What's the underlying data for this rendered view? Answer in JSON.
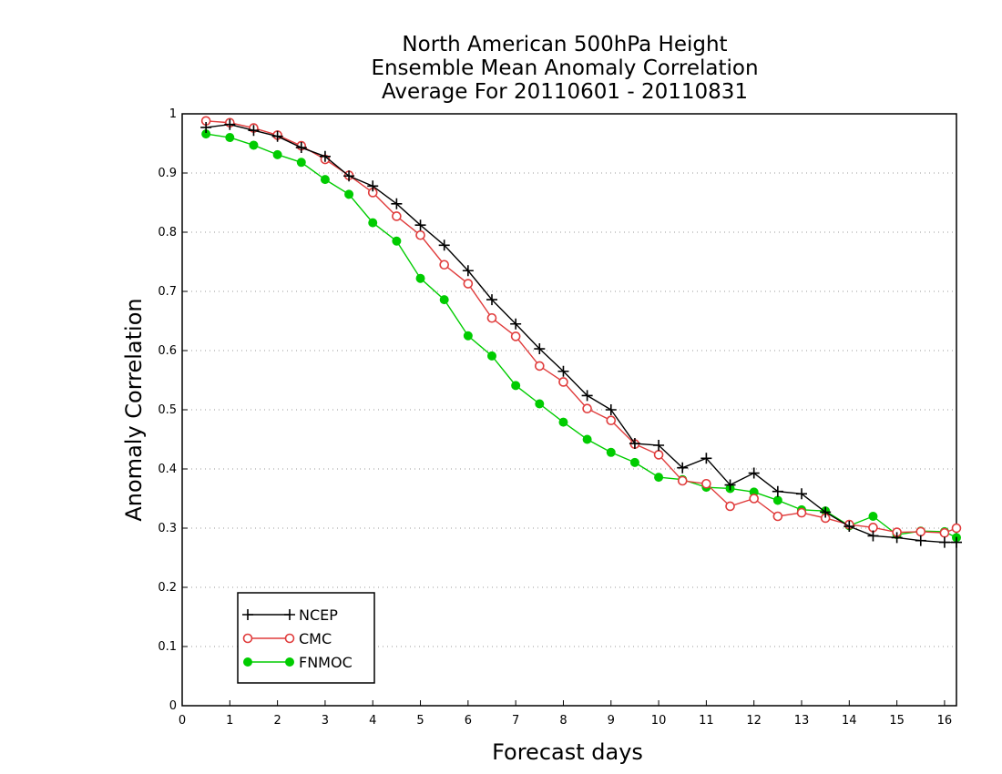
{
  "chart_data": {
    "type": "line",
    "title": [
      "North American 500hPa Height",
      "Ensemble Mean Anomaly Correlation",
      "Average For 20110601 - 20110831"
    ],
    "xlabel": "Forecast days",
    "ylabel": "Anomaly Correlation",
    "xlim": [
      0,
      16.25
    ],
    "ylim": [
      0,
      1
    ],
    "x_ticks": [
      "0",
      "1",
      "2",
      "3",
      "4",
      "5",
      "6",
      "7",
      "8",
      "9",
      "10",
      "11",
      "12",
      "13",
      "14",
      "15",
      "16"
    ],
    "y_ticks": [
      "0",
      "0.1",
      "0.2",
      "0.3",
      "0.4",
      "0.5",
      "0.6",
      "0.7",
      "0.8",
      "0.9",
      "1"
    ],
    "grid": "horizontal dotted",
    "legend_position": "bottom-left",
    "x": [
      0.5,
      1,
      1.5,
      2,
      2.5,
      3,
      3.5,
      4,
      4.5,
      5,
      5.5,
      6,
      6.5,
      7,
      7.5,
      8,
      8.5,
      9,
      9.5,
      10,
      10.5,
      11,
      11.5,
      12,
      12.5,
      13,
      13.5,
      14,
      14.5,
      15,
      15.5,
      16,
      16.25
    ],
    "series": [
      {
        "name": "NCEP",
        "color": "#000000",
        "marker": "plus",
        "values": [
          0.977,
          0.982,
          0.972,
          0.962,
          0.943,
          0.928,
          0.895,
          0.878,
          0.848,
          0.812,
          0.778,
          0.735,
          0.686,
          0.645,
          0.603,
          0.565,
          0.524,
          0.5,
          0.443,
          0.44,
          0.402,
          0.418,
          0.373,
          0.393,
          0.362,
          0.358,
          0.327,
          0.303,
          0.287,
          0.284,
          0.279,
          0.276,
          0.276
        ]
      },
      {
        "name": "CMC",
        "color": "#e03c3c",
        "marker": "open-circle",
        "values": [
          0.988,
          0.985,
          0.976,
          0.964,
          0.946,
          0.923,
          0.896,
          0.867,
          0.827,
          0.795,
          0.745,
          0.713,
          0.655,
          0.624,
          0.574,
          0.547,
          0.502,
          0.482,
          0.442,
          0.424,
          0.38,
          0.375,
          0.337,
          0.35,
          0.32,
          0.326,
          0.317,
          0.306,
          0.301,
          0.293,
          0.294,
          0.292,
          0.3
        ]
      },
      {
        "name": "FNMOC",
        "color": "#00cc00",
        "marker": "filled-circle",
        "values": [
          0.966,
          0.96,
          0.947,
          0.931,
          0.918,
          0.889,
          0.864,
          0.816,
          0.785,
          0.722,
          0.686,
          0.625,
          0.591,
          0.541,
          0.51,
          0.479,
          0.45,
          0.428,
          0.411,
          0.386,
          0.382,
          0.369,
          0.367,
          0.361,
          0.347,
          0.331,
          0.329,
          0.304,
          0.32,
          0.289,
          0.295,
          0.294,
          0.284
        ]
      }
    ]
  }
}
